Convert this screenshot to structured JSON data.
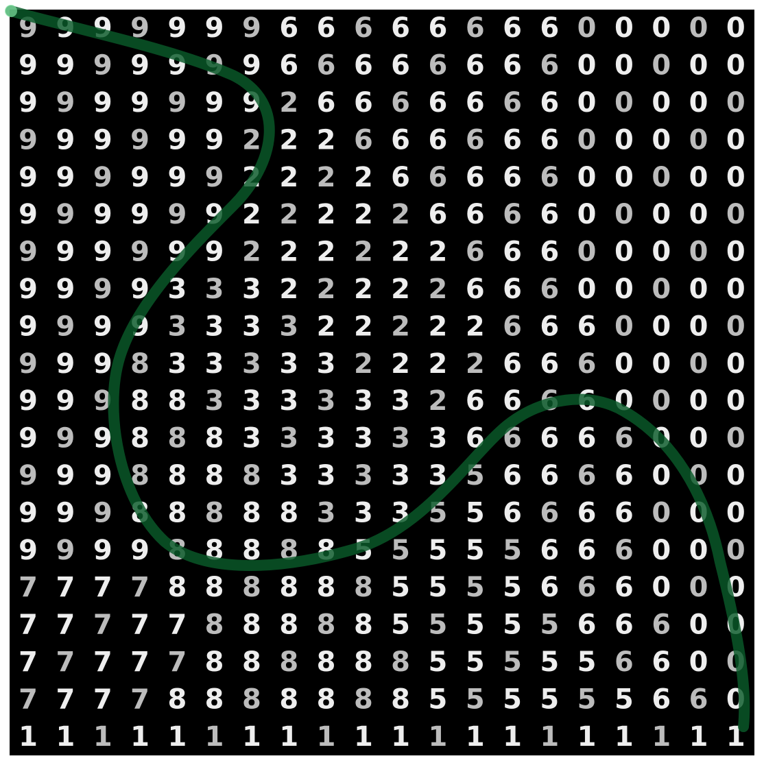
{
  "grid": {
    "rows": 20,
    "cols": 20,
    "background_color": "#000000",
    "digit_color": "#eeeeee",
    "cells": [
      [
        "9",
        "9",
        "9",
        "9",
        "9",
        "9",
        "9",
        "6",
        "6",
        "6",
        "6",
        "6",
        "6",
        "6",
        "6",
        "0",
        "0",
        "0",
        "0",
        "0"
      ],
      [
        "9",
        "9",
        "9",
        "9",
        "9",
        "9",
        "9",
        "6",
        "6",
        "6",
        "6",
        "6",
        "6",
        "6",
        "6",
        "0",
        "0",
        "0",
        "0",
        "0"
      ],
      [
        "9",
        "9",
        "9",
        "9",
        "9",
        "9",
        "9",
        "2",
        "6",
        "6",
        "6",
        "6",
        "6",
        "6",
        "6",
        "0",
        "0",
        "0",
        "0",
        "0"
      ],
      [
        "9",
        "9",
        "9",
        "9",
        "9",
        "9",
        "2",
        "2",
        "2",
        "6",
        "6",
        "6",
        "6",
        "6",
        "6",
        "0",
        "0",
        "0",
        "0",
        "0"
      ],
      [
        "9",
        "9",
        "9",
        "9",
        "9",
        "9",
        "2",
        "2",
        "2",
        "2",
        "6",
        "6",
        "6",
        "6",
        "6",
        "0",
        "0",
        "0",
        "0",
        "0"
      ],
      [
        "9",
        "9",
        "9",
        "9",
        "9",
        "9",
        "2",
        "2",
        "2",
        "2",
        "2",
        "6",
        "6",
        "6",
        "6",
        "0",
        "0",
        "0",
        "0",
        "0"
      ],
      [
        "9",
        "9",
        "9",
        "9",
        "9",
        "9",
        "2",
        "2",
        "2",
        "2",
        "2",
        "2",
        "6",
        "6",
        "6",
        "0",
        "0",
        "0",
        "0",
        "0"
      ],
      [
        "9",
        "9",
        "9",
        "9",
        "3",
        "3",
        "3",
        "2",
        "2",
        "2",
        "2",
        "2",
        "6",
        "6",
        "6",
        "0",
        "0",
        "0",
        "0",
        "0"
      ],
      [
        "9",
        "9",
        "9",
        "9",
        "3",
        "3",
        "3",
        "3",
        "2",
        "2",
        "2",
        "2",
        "2",
        "6",
        "6",
        "6",
        "0",
        "0",
        "0",
        "0"
      ],
      [
        "9",
        "9",
        "9",
        "8",
        "3",
        "3",
        "3",
        "3",
        "3",
        "2",
        "2",
        "2",
        "2",
        "6",
        "6",
        "6",
        "0",
        "0",
        "0",
        "0"
      ],
      [
        "9",
        "9",
        "9",
        "8",
        "8",
        "3",
        "3",
        "3",
        "3",
        "3",
        "3",
        "2",
        "6",
        "6",
        "6",
        "6",
        "0",
        "0",
        "0",
        "0"
      ],
      [
        "9",
        "9",
        "9",
        "8",
        "8",
        "8",
        "3",
        "3",
        "3",
        "3",
        "3",
        "3",
        "6",
        "6",
        "6",
        "6",
        "6",
        "0",
        "0",
        "0"
      ],
      [
        "9",
        "9",
        "9",
        "8",
        "8",
        "8",
        "8",
        "3",
        "3",
        "3",
        "3",
        "3",
        "5",
        "6",
        "6",
        "6",
        "6",
        "0",
        "0",
        "0"
      ],
      [
        "9",
        "9",
        "9",
        "8",
        "8",
        "8",
        "8",
        "8",
        "3",
        "3",
        "3",
        "5",
        "5",
        "6",
        "6",
        "6",
        "6",
        "0",
        "0",
        "0"
      ],
      [
        "9",
        "9",
        "9",
        "9",
        "8",
        "8",
        "8",
        "8",
        "8",
        "5",
        "5",
        "5",
        "5",
        "5",
        "6",
        "6",
        "6",
        "0",
        "0",
        "0"
      ],
      [
        "7",
        "7",
        "7",
        "7",
        "8",
        "8",
        "8",
        "8",
        "8",
        "8",
        "5",
        "5",
        "5",
        "5",
        "6",
        "6",
        "6",
        "0",
        "0",
        "0"
      ],
      [
        "7",
        "7",
        "7",
        "7",
        "7",
        "8",
        "8",
        "8",
        "8",
        "8",
        "5",
        "5",
        "5",
        "5",
        "5",
        "6",
        "6",
        "6",
        "0",
        "0"
      ],
      [
        "7",
        "7",
        "7",
        "7",
        "7",
        "8",
        "8",
        "8",
        "8",
        "8",
        "8",
        "5",
        "5",
        "5",
        "5",
        "5",
        "6",
        "6",
        "0",
        "0"
      ],
      [
        "7",
        "7",
        "7",
        "7",
        "8",
        "8",
        "8",
        "8",
        "8",
        "8",
        "8",
        "5",
        "5",
        "5",
        "5",
        "5",
        "5",
        "6",
        "6",
        "0"
      ],
      [
        "1",
        "1",
        "1",
        "1",
        "1",
        "1",
        "1",
        "1",
        "1",
        "1",
        "1",
        "1",
        "1",
        "1",
        "1",
        "1",
        "1",
        "1",
        "1",
        "1"
      ]
    ]
  },
  "path": {
    "stroke_color": "#0a5a2a",
    "highlight_color": "#7fe0a0",
    "opacity": 0.82
  }
}
